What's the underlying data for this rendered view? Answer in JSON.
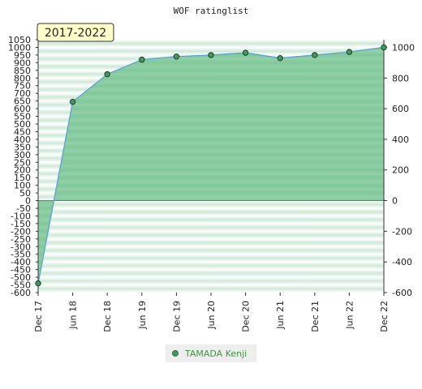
{
  "chart_data": {
    "type": "area",
    "title": "WOF ratinglist",
    "period_label": "2017-2022",
    "categories": [
      "Dec 17",
      "Jun 18",
      "Dec 18",
      "Jun 19",
      "Dec 19",
      "Jun 20",
      "Dec 20",
      "Jun 21",
      "Dec 21",
      "Jun 22",
      "Dec 22"
    ],
    "series": [
      {
        "name": "TAMADA Kenji",
        "values": [
          -540,
          645,
          825,
          920,
          940,
          950,
          965,
          930,
          950,
          970,
          1000
        ]
      }
    ],
    "y_left": {
      "ylim": [
        -600,
        1050
      ],
      "ticks": [
        -600,
        -550,
        -500,
        -450,
        -400,
        -350,
        -300,
        -250,
        -200,
        -150,
        -100,
        -50,
        0,
        50,
        100,
        150,
        200,
        250,
        300,
        350,
        400,
        450,
        500,
        550,
        600,
        650,
        700,
        750,
        800,
        850,
        900,
        950,
        1000,
        1050
      ]
    },
    "y_right": {
      "ylim": [
        -600,
        1050
      ],
      "ticks": [
        -600,
        -400,
        -200,
        0,
        200,
        400,
        600,
        800,
        1000
      ]
    },
    "grid": "horizontal bands",
    "legend_position": "bottom-center",
    "colors": {
      "fill": "#7cc797",
      "band_light": "#dff2e6",
      "line": "#5aa0d8",
      "marker": "#3f9a5e",
      "period_bg": "#fffdc8",
      "legend_bg": "#eeeeee",
      "legend_text": "#3a9a3a"
    }
  }
}
